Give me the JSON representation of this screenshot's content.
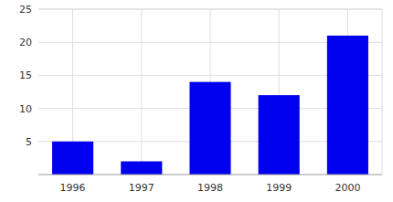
{
  "chart_data": {
    "type": "bar",
    "categories": [
      "1996",
      "1997",
      "1998",
      "1999",
      "2000"
    ],
    "values": [
      5,
      2,
      14,
      12,
      21
    ],
    "color": "#0000EE",
    "ylim": [
      0,
      25
    ],
    "yticks": [
      5,
      10,
      15,
      20,
      25
    ],
    "grid": true
  }
}
